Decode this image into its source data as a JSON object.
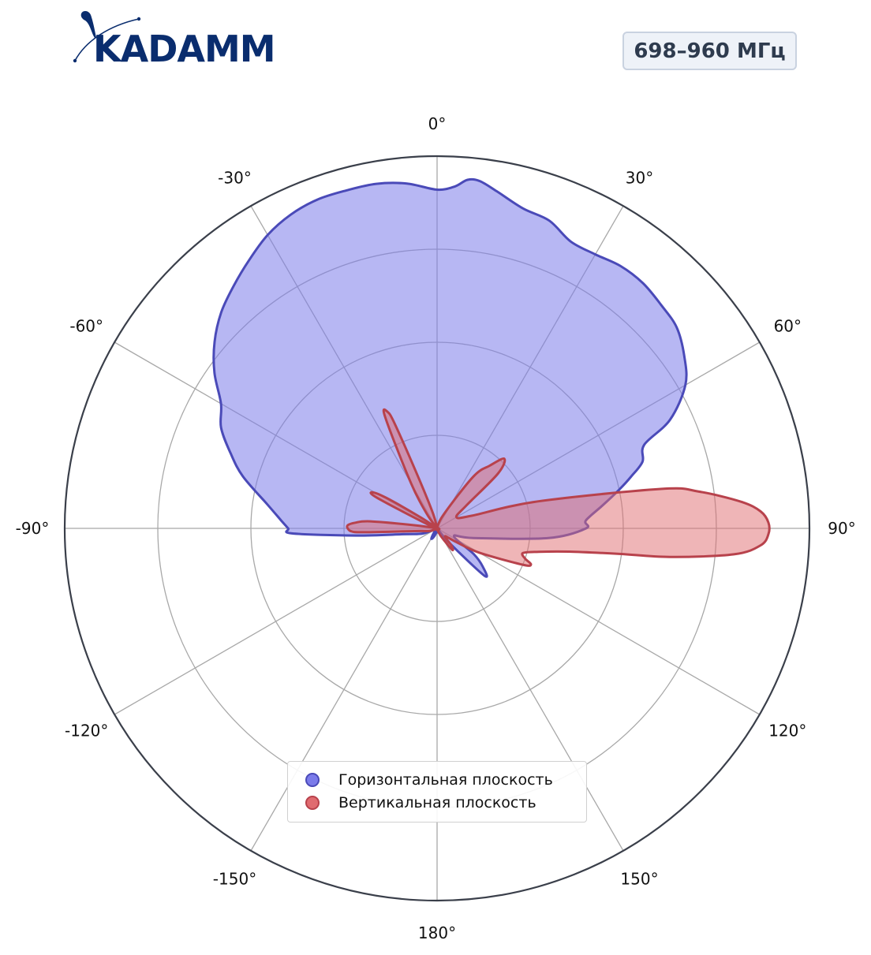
{
  "header": {
    "logo_text": "KADAMM",
    "frequency_badge": "698–960 МГц"
  },
  "colors": {
    "horizontal_fill": "#7b7bea",
    "horizontal_stroke": "#4a4ab8",
    "vertical_fill": "#e06b70",
    "vertical_stroke": "#b8424c",
    "grid": "#a8a8a8",
    "outer_ring": "#3a3f4a",
    "logo": "#0a2d6e"
  },
  "chart_data": {
    "type": "polar",
    "angular_ticks": [
      {
        "angle": 0,
        "label": "0°"
      },
      {
        "angle": 30,
        "label": "30°"
      },
      {
        "angle": 60,
        "label": "60°"
      },
      {
        "angle": 90,
        "label": "90°"
      },
      {
        "angle": 120,
        "label": "120°"
      },
      {
        "angle": 150,
        "label": "150°"
      },
      {
        "angle": 180,
        "label": "180°"
      },
      {
        "angle": -150,
        "label": "-150°"
      },
      {
        "angle": -120,
        "label": "-120°"
      },
      {
        "angle": -90,
        "label": "-90°"
      },
      {
        "angle": -60,
        "label": "-60°"
      },
      {
        "angle": -30,
        "label": "-30°"
      }
    ],
    "radial_range": [
      0,
      1
    ],
    "radial_grid": [
      0.25,
      0.5,
      0.75,
      1.0
    ],
    "radial_tick_labels": false,
    "zero_location": "top",
    "direction": "clockwise",
    "legend_placement": "lower-center",
    "series": [
      {
        "name": "Горизонтальная плоскость",
        "points": [
          [
            -180,
            0.0
          ],
          [
            -170,
            0.01
          ],
          [
            -162,
            0.02
          ],
          [
            -155,
            0.03
          ],
          [
            -150,
            0.03
          ],
          [
            -140,
            0.01
          ],
          [
            -130,
            0.0
          ],
          [
            -120,
            0.0
          ],
          [
            -110,
            0.04
          ],
          [
            -100,
            0.09
          ],
          [
            -95,
            0.22
          ],
          [
            -92,
            0.39
          ],
          [
            -90,
            0.4
          ],
          [
            -87,
            0.42
          ],
          [
            -82,
            0.46
          ],
          [
            -75,
            0.54
          ],
          [
            -70,
            0.59
          ],
          [
            -65,
            0.64
          ],
          [
            -60,
            0.67
          ],
          [
            -55,
            0.73
          ],
          [
            -50,
            0.78
          ],
          [
            -45,
            0.82
          ],
          [
            -40,
            0.85
          ],
          [
            -35,
            0.88
          ],
          [
            -30,
            0.91
          ],
          [
            -25,
            0.93
          ],
          [
            -20,
            0.94
          ],
          [
            -15,
            0.94
          ],
          [
            -10,
            0.94
          ],
          [
            -5,
            0.93
          ],
          [
            0,
            0.91
          ],
          [
            3,
            0.92
          ],
          [
            5,
            0.94
          ],
          [
            7,
            0.94
          ],
          [
            10,
            0.92
          ],
          [
            15,
            0.89
          ],
          [
            20,
            0.88
          ],
          [
            25,
            0.85
          ],
          [
            30,
            0.85
          ],
          [
            35,
            0.86
          ],
          [
            40,
            0.86
          ],
          [
            45,
            0.85
          ],
          [
            50,
            0.84
          ],
          [
            55,
            0.81
          ],
          [
            60,
            0.77
          ],
          [
            65,
            0.69
          ],
          [
            68,
            0.6
          ],
          [
            72,
            0.58
          ],
          [
            75,
            0.54
          ],
          [
            78,
            0.5
          ],
          [
            82,
            0.45
          ],
          [
            87,
            0.4
          ],
          [
            90,
            0.4
          ],
          [
            95,
            0.3
          ],
          [
            105,
            0.1
          ],
          [
            115,
            0.05
          ],
          [
            125,
            0.12
          ],
          [
            130,
            0.16
          ],
          [
            135,
            0.18
          ],
          [
            140,
            0.05
          ],
          [
            150,
            0.0
          ],
          [
            160,
            0.01
          ],
          [
            170,
            0.01
          ],
          [
            180,
            0.0
          ]
        ]
      },
      {
        "name": "Вертикальная плоскость",
        "points": [
          [
            -180,
            0.0
          ],
          [
            -140,
            0.0
          ],
          [
            -110,
            0.02
          ],
          [
            -97,
            0.06
          ],
          [
            -93,
            0.2
          ],
          [
            -92,
            0.23
          ],
          [
            -90,
            0.24
          ],
          [
            -88,
            0.24
          ],
          [
            -86,
            0.22
          ],
          [
            -84,
            0.18
          ],
          [
            -82,
            0.06
          ],
          [
            -80,
            0.0
          ],
          [
            -75,
            0.0
          ],
          [
            -66,
            0.04
          ],
          [
            -63,
            0.18
          ],
          [
            -61,
            0.2
          ],
          [
            -59,
            0.16
          ],
          [
            -56,
            0.05
          ],
          [
            -52,
            0.0
          ],
          [
            -44,
            0.0
          ],
          [
            -35,
            0.05
          ],
          [
            -30,
            0.14
          ],
          [
            -25,
            0.33
          ],
          [
            -23,
            0.34
          ],
          [
            -22,
            0.3
          ],
          [
            -20,
            0.14
          ],
          [
            -15,
            0.04
          ],
          [
            -5,
            0.0
          ],
          [
            10,
            0.0
          ],
          [
            25,
            0.04
          ],
          [
            35,
            0.17
          ],
          [
            40,
            0.22
          ],
          [
            44,
            0.26
          ],
          [
            48,
            0.22
          ],
          [
            52,
            0.1
          ],
          [
            60,
            0.06
          ],
          [
            70,
            0.1
          ],
          [
            75,
            0.28
          ],
          [
            80,
            0.61
          ],
          [
            82,
            0.71
          ],
          [
            85,
            0.82
          ],
          [
            87,
            0.87
          ],
          [
            89,
            0.89
          ],
          [
            91,
            0.89
          ],
          [
            93,
            0.87
          ],
          [
            95,
            0.8
          ],
          [
            97,
            0.63
          ],
          [
            98,
            0.49
          ],
          [
            100,
            0.36
          ],
          [
            103,
            0.28
          ],
          [
            106,
            0.24
          ],
          [
            109,
            0.25
          ],
          [
            111,
            0.27
          ],
          [
            113,
            0.25
          ],
          [
            120,
            0.13
          ],
          [
            126,
            0.06
          ],
          [
            135,
            0.03
          ],
          [
            140,
            0.06
          ],
          [
            145,
            0.07
          ],
          [
            155,
            0.02
          ],
          [
            170,
            0.0
          ],
          [
            180,
            0.0
          ]
        ]
      }
    ]
  }
}
